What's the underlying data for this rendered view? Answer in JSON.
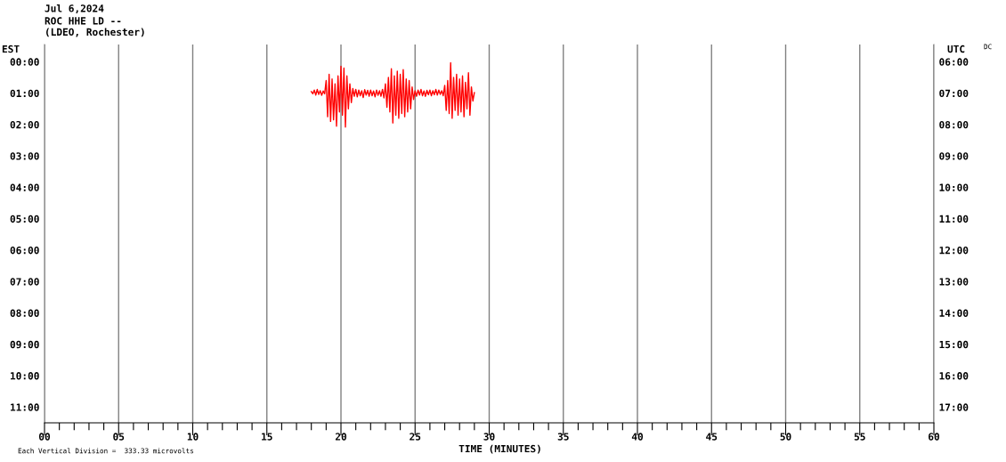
{
  "chart_data": {
    "type": "line",
    "title": "Jul 6,2024",
    "subtitle": "ROC HHE LD --\n(LDEO, Rochester)",
    "xlabel": "TIME (MINUTES)",
    "ylabel": "EST",
    "y2label": "UTC",
    "annotations": [
      "Each Vertical Division =  333.33 microvolts",
      "DC"
    ],
    "xlim": [
      0,
      60
    ],
    "xticks": [
      {
        "value": 0,
        "label": "00"
      },
      {
        "value": 1,
        "label": null
      },
      {
        "value": 2,
        "label": null
      },
      {
        "value": 3,
        "label": null
      },
      {
        "value": 4,
        "label": null
      },
      {
        "value": 5,
        "label": "05"
      },
      {
        "value": 6,
        "label": null
      },
      {
        "value": 7,
        "label": null
      },
      {
        "value": 8,
        "label": null
      },
      {
        "value": 9,
        "label": null
      },
      {
        "value": 10,
        "label": "10"
      },
      {
        "value": 11,
        "label": null
      },
      {
        "value": 12,
        "label": null
      },
      {
        "value": 13,
        "label": null
      },
      {
        "value": 14,
        "label": null
      },
      {
        "value": 15,
        "label": "15"
      },
      {
        "value": 16,
        "label": null
      },
      {
        "value": 17,
        "label": null
      },
      {
        "value": 18,
        "label": null
      },
      {
        "value": 19,
        "label": null
      },
      {
        "value": 20,
        "label": "20"
      },
      {
        "value": 21,
        "label": null
      },
      {
        "value": 22,
        "label": null
      },
      {
        "value": 23,
        "label": null
      },
      {
        "value": 24,
        "label": null
      },
      {
        "value": 25,
        "label": "25"
      },
      {
        "value": 26,
        "label": null
      },
      {
        "value": 27,
        "label": null
      },
      {
        "value": 28,
        "label": null
      },
      {
        "value": 29,
        "label": null
      },
      {
        "value": 30,
        "label": "30"
      },
      {
        "value": 31,
        "label": null
      },
      {
        "value": 32,
        "label": null
      },
      {
        "value": 33,
        "label": null
      },
      {
        "value": 34,
        "label": null
      },
      {
        "value": 35,
        "label": "35"
      },
      {
        "value": 36,
        "label": null
      },
      {
        "value": 37,
        "label": null
      },
      {
        "value": 38,
        "label": null
      },
      {
        "value": 39,
        "label": null
      },
      {
        "value": 40,
        "label": "40"
      },
      {
        "value": 41,
        "label": null
      },
      {
        "value": 42,
        "label": null
      },
      {
        "value": 43,
        "label": null
      },
      {
        "value": 44,
        "label": null
      },
      {
        "value": 45,
        "label": "45"
      },
      {
        "value": 46,
        "label": null
      },
      {
        "value": 47,
        "label": null
      },
      {
        "value": 48,
        "label": null
      },
      {
        "value": 49,
        "label": null
      },
      {
        "value": 50,
        "label": "50"
      },
      {
        "value": 51,
        "label": null
      },
      {
        "value": 52,
        "label": null
      },
      {
        "value": 53,
        "label": null
      },
      {
        "value": 54,
        "label": null
      },
      {
        "value": 55,
        "label": "55"
      },
      {
        "value": 56,
        "label": null
      },
      {
        "value": 57,
        "label": null
      },
      {
        "value": 58,
        "label": null
      },
      {
        "value": 59,
        "label": null
      },
      {
        "value": 60,
        "label": "60"
      }
    ],
    "ylim": [
      11.5,
      -0.55
    ],
    "yticks": [
      {
        "value": 0,
        "label": "00:00"
      },
      {
        "value": 1,
        "label": "01:00"
      },
      {
        "value": 2,
        "label": "02:00"
      },
      {
        "value": 3,
        "label": "03:00"
      },
      {
        "value": 4,
        "label": "04:00"
      },
      {
        "value": 5,
        "label": "05:00"
      },
      {
        "value": 6,
        "label": "06:00"
      },
      {
        "value": 7,
        "label": "07:00"
      },
      {
        "value": 8,
        "label": "08:00"
      },
      {
        "value": 9,
        "label": "09:00"
      },
      {
        "value": 10,
        "label": "10:00"
      },
      {
        "value": 11,
        "label": "11:00"
      }
    ],
    "y2lim": [
      17.5,
      5.45
    ],
    "y2ticks": [
      {
        "value": 6,
        "label": "06:00"
      },
      {
        "value": 7,
        "label": "07:00"
      },
      {
        "value": 8,
        "label": "08:00"
      },
      {
        "value": 9,
        "label": "09:00"
      },
      {
        "value": 10,
        "label": "10:00"
      },
      {
        "value": 11,
        "label": "11:00"
      },
      {
        "value": 12,
        "label": "12:00"
      },
      {
        "value": 13,
        "label": "13:00"
      },
      {
        "value": 14,
        "label": "14:00"
      },
      {
        "value": 15,
        "label": "15:00"
      },
      {
        "value": 16,
        "label": "16:00"
      },
      {
        "value": 17,
        "label": "17:00"
      }
    ],
    "grid": "x",
    "legend": false,
    "marker": "none",
    "line_style": "solid",
    "series": [
      {
        "color": "#ff0000",
        "x": [
          18.0,
          18.1,
          18.2,
          18.3,
          18.4,
          18.5,
          18.6,
          18.7,
          18.8,
          18.9,
          19.0,
          19.1,
          19.2,
          19.3,
          19.4,
          19.5,
          19.6,
          19.7,
          19.8,
          19.9,
          20.0,
          20.1,
          20.2,
          20.3,
          20.4,
          20.5,
          20.6,
          20.7,
          20.8,
          20.9,
          21.0,
          21.1,
          21.2,
          21.3,
          21.4,
          21.5,
          21.6,
          21.7,
          21.8,
          21.9,
          22.0,
          22.1,
          22.2,
          22.3,
          22.4,
          22.5,
          22.6,
          22.7,
          22.8,
          22.9,
          23.0,
          23.1,
          23.2,
          23.3,
          23.4,
          23.5,
          23.6,
          23.7,
          23.8,
          23.9,
          24.0,
          24.1,
          24.2,
          24.3,
          24.4,
          24.5,
          24.6,
          24.7,
          24.8,
          24.9,
          25.0,
          25.1,
          25.2,
          25.3,
          25.4,
          25.5,
          25.6,
          25.7,
          25.8,
          25.9,
          26.0,
          26.1,
          26.2,
          26.3,
          26.4,
          26.5,
          26.6,
          26.7,
          26.8,
          26.9,
          27.0,
          27.1,
          27.2,
          27.3,
          27.4,
          27.5,
          27.6,
          27.7,
          27.8,
          27.9,
          28.0,
          28.1,
          28.2,
          28.3,
          28.4,
          28.5,
          28.6,
          28.7,
          28.8,
          28.9,
          29.0
        ],
        "values": [
          0.95,
          1.02,
          0.9,
          1.06,
          0.88,
          1.04,
          0.92,
          1.07,
          0.93,
          1.02,
          0.6,
          1.75,
          0.4,
          1.9,
          0.55,
          1.85,
          0.7,
          2.05,
          0.45,
          1.6,
          0.14,
          1.7,
          0.2,
          2.08,
          0.45,
          1.5,
          0.7,
          1.3,
          0.85,
          1.1,
          0.88,
          1.12,
          0.9,
          1.08,
          0.92,
          1.14,
          0.89,
          1.06,
          0.91,
          1.1,
          0.9,
          1.08,
          0.93,
          1.12,
          0.9,
          1.07,
          0.92,
          1.1,
          0.88,
          1.15,
          0.7,
          1.45,
          0.5,
          1.6,
          0.22,
          1.95,
          0.45,
          1.7,
          0.3,
          1.8,
          0.4,
          1.65,
          0.25,
          1.75,
          0.55,
          1.6,
          0.6,
          1.5,
          0.8,
          1.2,
          0.92,
          1.1,
          0.9,
          1.06,
          0.88,
          1.08,
          0.93,
          1.1,
          0.91,
          1.05,
          0.9,
          1.08,
          0.92,
          1.05,
          0.88,
          1.06,
          0.9,
          1.04,
          0.92,
          1.08,
          0.75,
          1.55,
          0.6,
          1.65,
          0.03,
          1.8,
          0.5,
          1.55,
          0.4,
          1.7,
          0.55,
          1.6,
          0.45,
          1.75,
          0.65,
          1.5,
          0.35,
          1.7,
          0.8,
          1.25,
          0.98
        ]
      }
    ]
  }
}
